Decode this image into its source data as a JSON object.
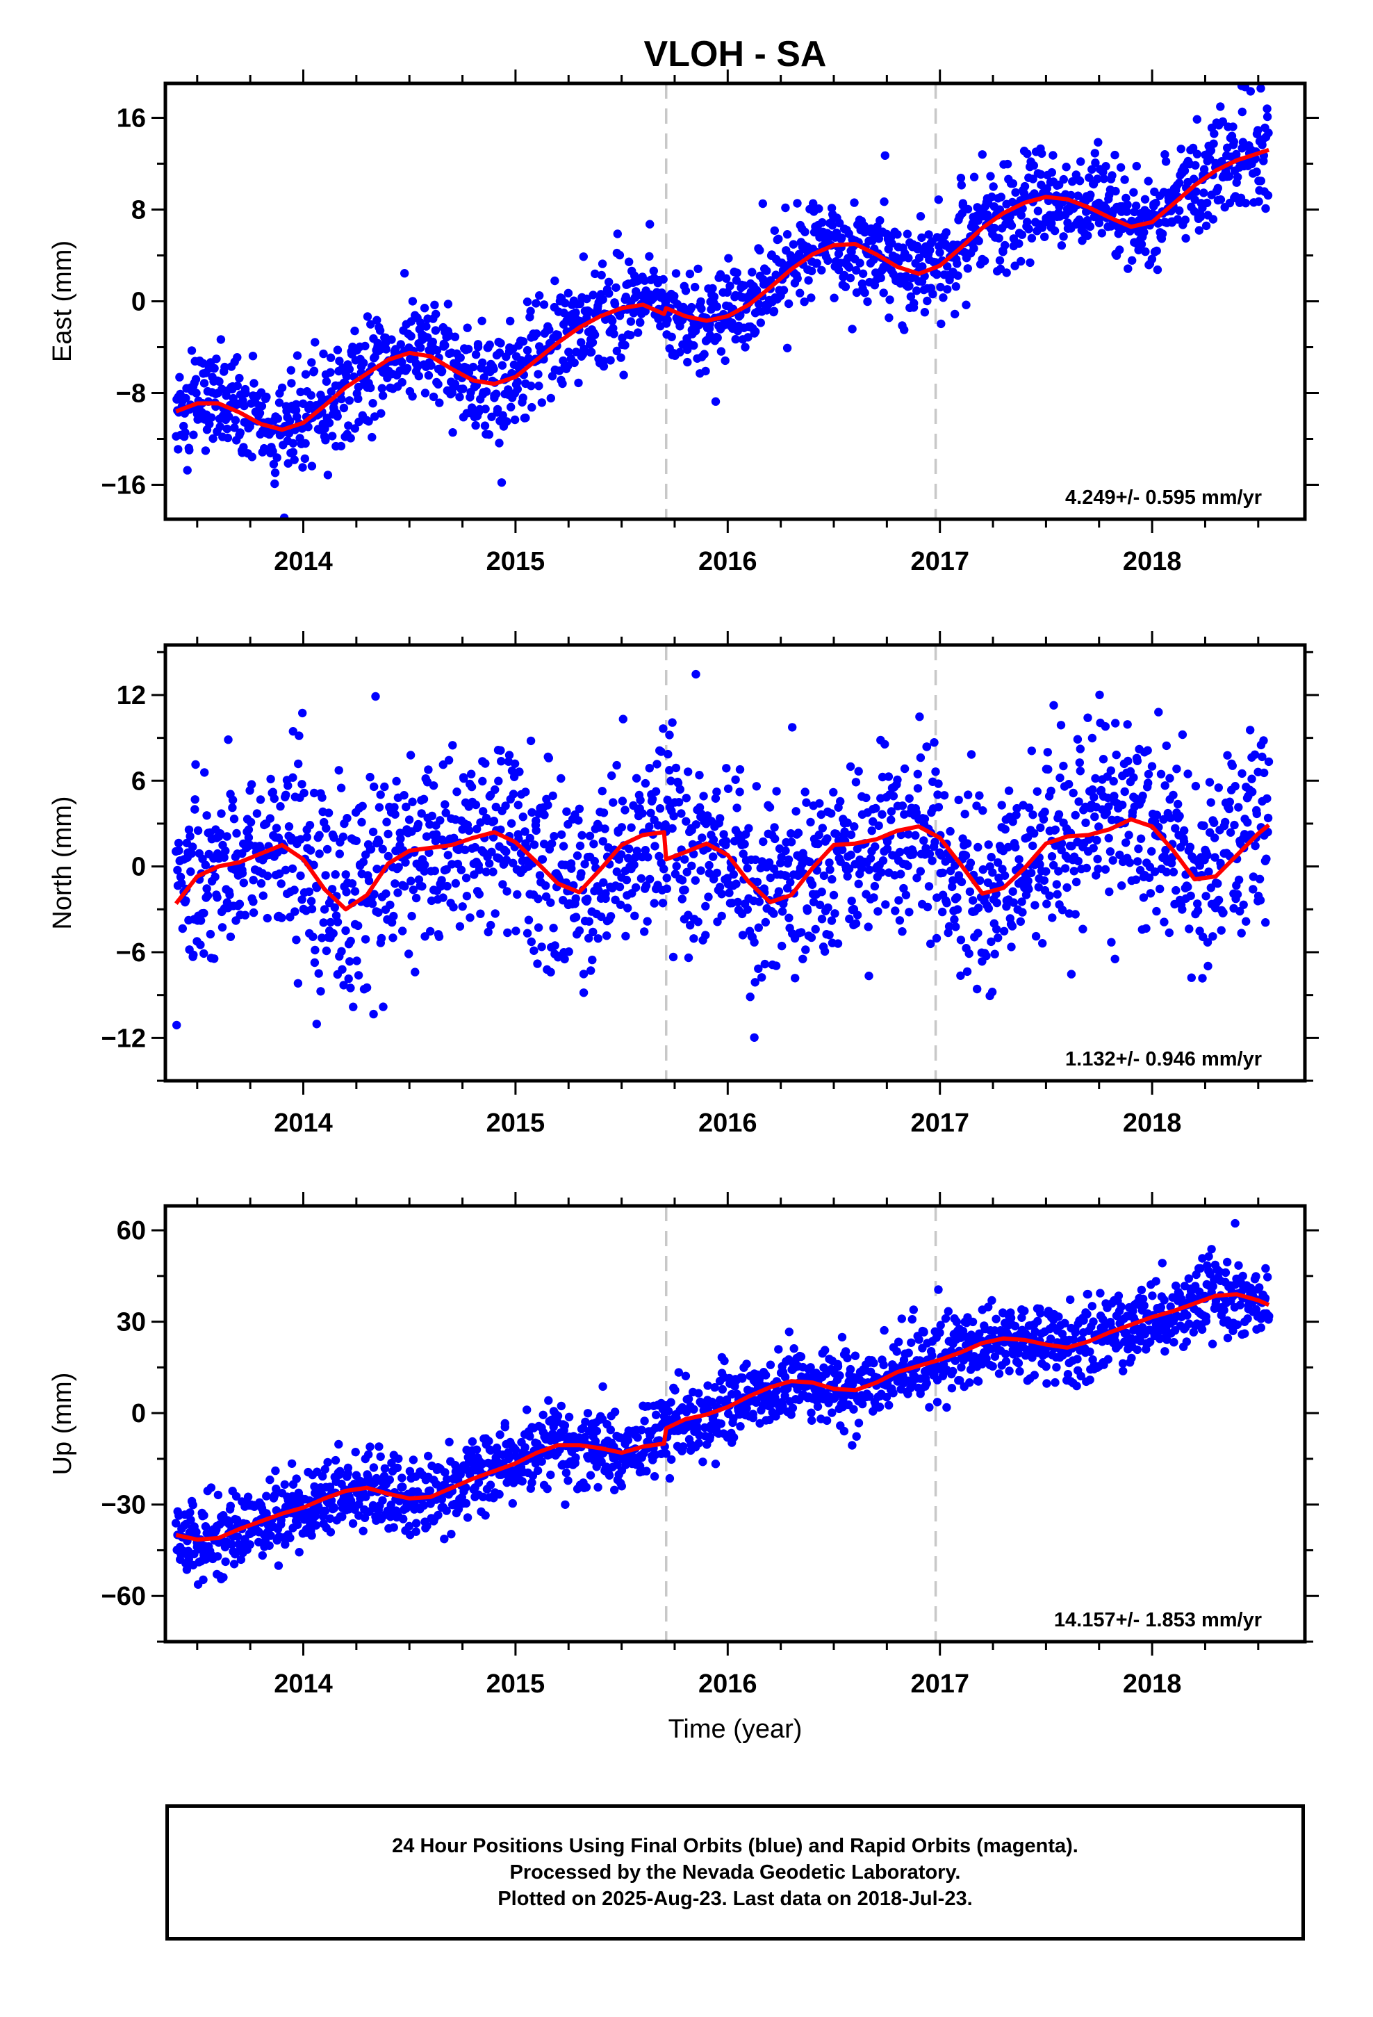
{
  "title": "VLOH - SA",
  "colors": {
    "points": "#0000ff",
    "fit": "#ff0000",
    "event_lines": "#c8c8c8"
  },
  "event_lines_decimal_year": [
    2015.71,
    2016.98
  ],
  "footer": {
    "lines": [
      "24 Hour Positions Using Final Orbits (blue) and Rapid Orbits (magenta).",
      "Processed by the Nevada Geodetic Laboratory.",
      "Plotted on 2025-Aug-23. Last data on 2018-Jul-23."
    ]
  },
  "chart_data": [
    {
      "type": "scatter",
      "component": "east",
      "ylabel": "East (mm)",
      "xlabel": "",
      "xlim": [
        2013.35,
        2018.72
      ],
      "ylim": [
        -19,
        19
      ],
      "x_ticks": [
        2014,
        2015,
        2016,
        2017,
        2018
      ],
      "x_tick_labels": [
        "2014",
        "2015",
        "2016",
        "2017",
        "2018"
      ],
      "y_ticks": [
        -16,
        -8,
        0,
        8,
        16
      ],
      "y_tick_labels": [
        "−16",
        "−8",
        "0",
        "8",
        "16"
      ],
      "rate_label": "4.249+/- 0.595 mm/yr",
      "series": [
        {
          "kind": "points",
          "color": "#0000ff",
          "x": [
            2013.4,
            2013.5,
            2013.6,
            2013.7,
            2013.8,
            2013.9,
            2014.0,
            2014.1,
            2014.2,
            2014.3,
            2014.4,
            2014.5,
            2014.6,
            2014.7,
            2014.8,
            2014.9,
            2015.0,
            2015.1,
            2015.2,
            2015.3,
            2015.4,
            2015.5,
            2015.6,
            2015.7,
            2015.8,
            2015.9,
            2016.0,
            2016.1,
            2016.2,
            2016.3,
            2016.4,
            2016.5,
            2016.6,
            2016.7,
            2016.8,
            2016.9,
            2017.0,
            2017.1,
            2017.2,
            2017.3,
            2017.4,
            2017.5,
            2017.6,
            2017.7,
            2017.8,
            2017.9,
            2018.0,
            2018.1,
            2018.2,
            2018.3,
            2018.4,
            2018.5,
            2018.55
          ],
          "y": [
            -9.5,
            -8.5,
            -8.7,
            -9.8,
            -10.8,
            -11.3,
            -10.5,
            -9.0,
            -7.6,
            -6.5,
            -5.3,
            -4.6,
            -4.8,
            -5.8,
            -6.8,
            -7.2,
            -6.5,
            -5.0,
            -3.6,
            -2.4,
            -1.4,
            -0.7,
            -0.4,
            -1.0,
            -1.8,
            -1.9,
            -1.3,
            -0.2,
            1.3,
            2.8,
            4.1,
            4.9,
            4.9,
            4.0,
            2.9,
            2.4,
            3.2,
            4.8,
            6.4,
            7.7,
            8.6,
            9.1,
            8.9,
            8.3,
            7.4,
            6.6,
            7.0,
            8.6,
            10.2,
            11.5,
            12.4,
            13.0,
            13.2
          ]
        },
        {
          "kind": "line",
          "color": "#ff0000",
          "x": [
            2013.4,
            2013.5,
            2013.6,
            2013.7,
            2013.8,
            2013.9,
            2014.0,
            2014.1,
            2014.2,
            2014.3,
            2014.4,
            2014.5,
            2014.6,
            2014.7,
            2014.8,
            2014.9,
            2015.0,
            2015.1,
            2015.2,
            2015.3,
            2015.4,
            2015.5,
            2015.6,
            2015.7,
            2015.71,
            2015.8,
            2015.9,
            2016.0,
            2016.1,
            2016.2,
            2016.3,
            2016.4,
            2016.5,
            2016.6,
            2016.7,
            2016.8,
            2016.9,
            2017.0,
            2017.1,
            2017.2,
            2017.3,
            2017.4,
            2017.5,
            2017.6,
            2017.7,
            2017.8,
            2017.9,
            2018.0,
            2018.1,
            2018.2,
            2018.3,
            2018.4,
            2018.5,
            2018.55
          ],
          "y": [
            -9.6,
            -8.9,
            -8.9,
            -9.7,
            -10.7,
            -11.2,
            -10.6,
            -9.1,
            -7.5,
            -6.3,
            -5.1,
            -4.5,
            -4.8,
            -5.9,
            -6.9,
            -7.2,
            -6.6,
            -5.1,
            -3.6,
            -2.3,
            -1.3,
            -0.6,
            -0.3,
            -1.1,
            -0.6,
            -1.3,
            -1.7,
            -1.3,
            -0.3,
            1.2,
            2.8,
            4.1,
            4.9,
            5.0,
            4.1,
            3.0,
            2.4,
            3.1,
            4.7,
            6.4,
            7.7,
            8.6,
            9.1,
            8.9,
            8.2,
            7.3,
            6.5,
            6.9,
            8.5,
            10.1,
            11.4,
            12.3,
            12.9,
            13.2
          ]
        }
      ]
    },
    {
      "type": "scatter",
      "component": "north",
      "ylabel": "North (mm)",
      "xlabel": "",
      "xlim": [
        2013.35,
        2018.72
      ],
      "ylim": [
        -15,
        15.5
      ],
      "x_ticks": [
        2014,
        2015,
        2016,
        2017,
        2018
      ],
      "x_tick_labels": [
        "2014",
        "2015",
        "2016",
        "2017",
        "2018"
      ],
      "y_ticks": [
        -12,
        -6,
        0,
        6,
        12
      ],
      "y_tick_labels": [
        "−12",
        "−6",
        "0",
        "6",
        "12"
      ],
      "rate_label": "1.132+/- 0.946 mm/yr",
      "series": [
        {
          "kind": "points",
          "color": "#0000ff",
          "x": [
            2013.4,
            2013.5,
            2013.6,
            2013.7,
            2013.8,
            2013.9,
            2014.0,
            2014.1,
            2014.2,
            2014.3,
            2014.4,
            2014.5,
            2014.6,
            2014.7,
            2014.8,
            2014.9,
            2015.0,
            2015.1,
            2015.2,
            2015.3,
            2015.4,
            2015.5,
            2015.6,
            2015.7,
            2015.8,
            2015.9,
            2016.0,
            2016.1,
            2016.2,
            2016.3,
            2016.4,
            2016.5,
            2016.6,
            2016.7,
            2016.8,
            2016.9,
            2017.0,
            2017.1,
            2017.2,
            2017.3,
            2017.4,
            2017.5,
            2017.6,
            2017.7,
            2017.8,
            2017.9,
            2018.0,
            2018.1,
            2018.2,
            2018.3,
            2018.4,
            2018.5,
            2018.55
          ],
          "y": [
            -2.5,
            -0.8,
            0.0,
            0.3,
            0.9,
            1.5,
            0.6,
            -1.6,
            -3.0,
            -2.0,
            0.2,
            1.1,
            1.3,
            1.5,
            2.0,
            2.4,
            1.8,
            0.3,
            -1.2,
            -1.7,
            -0.2,
            1.5,
            2.2,
            2.4,
            0.9,
            1.6,
            0.8,
            -1.0,
            -2.4,
            -1.9,
            0.0,
            1.5,
            1.6,
            1.9,
            2.5,
            2.8,
            2.0,
            0.1,
            -1.8,
            -1.5,
            -0.1,
            1.6,
            2.1,
            2.2,
            2.6,
            3.3,
            2.9,
            1.2,
            -0.8,
            -0.7,
            0.8,
            2.3,
            2.9
          ]
        },
        {
          "kind": "line",
          "color": "#ff0000",
          "x": [
            2013.4,
            2013.5,
            2013.6,
            2013.7,
            2013.8,
            2013.9,
            2014.0,
            2014.1,
            2014.2,
            2014.3,
            2014.4,
            2014.5,
            2014.6,
            2014.7,
            2014.8,
            2014.9,
            2015.0,
            2015.1,
            2015.2,
            2015.3,
            2015.4,
            2015.5,
            2015.6,
            2015.7,
            2015.71,
            2015.8,
            2015.9,
            2016.0,
            2016.1,
            2016.2,
            2016.3,
            2016.4,
            2016.5,
            2016.6,
            2016.7,
            2016.8,
            2016.9,
            2017.0,
            2017.1,
            2017.2,
            2017.3,
            2017.4,
            2017.5,
            2017.6,
            2017.7,
            2017.8,
            2017.9,
            2018.0,
            2018.1,
            2018.2,
            2018.3,
            2018.4,
            2018.5,
            2018.55
          ],
          "y": [
            -2.6,
            -0.7,
            0.0,
            0.3,
            0.9,
            1.5,
            0.5,
            -1.6,
            -3.0,
            -2.0,
            0.2,
            1.1,
            1.3,
            1.5,
            2.0,
            2.4,
            1.7,
            0.3,
            -1.2,
            -1.8,
            -0.2,
            1.5,
            2.2,
            2.4,
            0.5,
            1.0,
            1.6,
            0.8,
            -1.1,
            -2.5,
            -2.0,
            -0.1,
            1.5,
            1.6,
            1.9,
            2.5,
            2.8,
            2.0,
            0.1,
            -1.9,
            -1.5,
            -0.1,
            1.6,
            2.1,
            2.2,
            2.6,
            3.3,
            2.8,
            1.1,
            -0.9,
            -0.7,
            0.8,
            2.3,
            2.9
          ]
        }
      ]
    },
    {
      "type": "scatter",
      "component": "up",
      "ylabel": "Up (mm)",
      "xlabel": "Time (year)",
      "xlim": [
        2013.35,
        2018.72
      ],
      "ylim": [
        -75,
        68
      ],
      "x_ticks": [
        2014,
        2015,
        2016,
        2017,
        2018
      ],
      "x_tick_labels": [
        "2014",
        "2015",
        "2016",
        "2017",
        "2018"
      ],
      "y_ticks": [
        -60,
        -30,
        0,
        30,
        60
      ],
      "y_tick_labels": [
        "−60",
        "−30",
        "0",
        "30",
        "60"
      ],
      "rate_label": "14.157+/- 1.853 mm/yr",
      "series": [
        {
          "kind": "points",
          "color": "#0000ff",
          "x": [
            2013.4,
            2013.5,
            2013.6,
            2013.7,
            2013.8,
            2013.9,
            2014.0,
            2014.1,
            2014.2,
            2014.3,
            2014.4,
            2014.5,
            2014.6,
            2014.7,
            2014.8,
            2014.9,
            2015.0,
            2015.1,
            2015.2,
            2015.3,
            2015.4,
            2015.5,
            2015.6,
            2015.7,
            2015.8,
            2015.9,
            2016.0,
            2016.1,
            2016.2,
            2016.3,
            2016.4,
            2016.5,
            2016.6,
            2016.7,
            2016.8,
            2016.9,
            2017.0,
            2017.1,
            2017.2,
            2017.3,
            2017.4,
            2017.5,
            2017.6,
            2017.7,
            2017.8,
            2017.9,
            2018.0,
            2018.1,
            2018.2,
            2018.3,
            2018.4,
            2018.5,
            2018.55
          ],
          "y": [
            -40,
            -41.5,
            -41,
            -38,
            -35.5,
            -33,
            -31,
            -28,
            -25.5,
            -24.5,
            -26.5,
            -28,
            -27.5,
            -24.5,
            -21.5,
            -19,
            -16.5,
            -13,
            -10.5,
            -10.5,
            -11.5,
            -13,
            -11,
            -5,
            -2,
            -0.5,
            2,
            5.5,
            8.5,
            10.5,
            10,
            8,
            7.5,
            10,
            13.5,
            15.5,
            17.5,
            20,
            23,
            24.5,
            24,
            22.5,
            21.5,
            23.5,
            26.5,
            29,
            31.5,
            33.5,
            36,
            38.5,
            39,
            37,
            35.5
          ]
        },
        {
          "kind": "line",
          "color": "#ff0000",
          "x": [
            2013.4,
            2013.5,
            2013.6,
            2013.7,
            2013.8,
            2013.9,
            2014.0,
            2014.1,
            2014.2,
            2014.3,
            2014.4,
            2014.5,
            2014.6,
            2014.7,
            2014.8,
            2014.9,
            2015.0,
            2015.1,
            2015.2,
            2015.3,
            2015.4,
            2015.5,
            2015.6,
            2015.7,
            2015.71,
            2015.8,
            2015.9,
            2016.0,
            2016.1,
            2016.2,
            2016.3,
            2016.4,
            2016.5,
            2016.6,
            2016.7,
            2016.8,
            2016.9,
            2017.0,
            2017.1,
            2017.2,
            2017.3,
            2017.4,
            2017.5,
            2017.6,
            2017.7,
            2017.8,
            2017.9,
            2018.0,
            2018.1,
            2018.2,
            2018.3,
            2018.4,
            2018.5,
            2018.55
          ],
          "y": [
            -40,
            -41.5,
            -41,
            -38,
            -35.5,
            -33,
            -31,
            -28,
            -25.5,
            -24.5,
            -26.5,
            -28,
            -27.5,
            -24.5,
            -21.5,
            -19,
            -16.5,
            -13,
            -10.5,
            -10.5,
            -11.5,
            -13,
            -11,
            -10,
            -5,
            -2,
            -0.5,
            2,
            5.5,
            8.5,
            10.5,
            10,
            8,
            7.5,
            10,
            13.5,
            15.5,
            17.5,
            20,
            23,
            24.5,
            24,
            22.5,
            21.5,
            23.5,
            26.5,
            29,
            31.5,
            33.5,
            36,
            38.5,
            39,
            37,
            35.5
          ]
        }
      ]
    }
  ]
}
